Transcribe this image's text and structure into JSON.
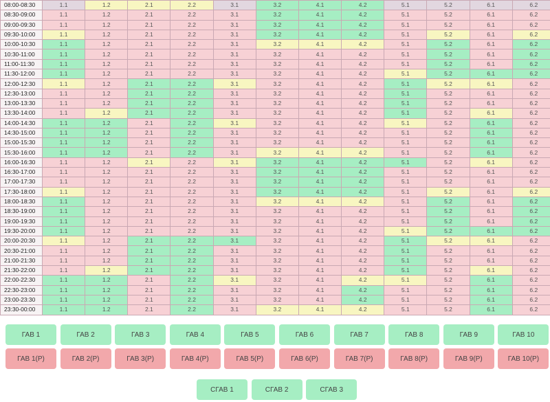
{
  "colors": {
    "green": "#a6eec3",
    "red": "#f7d1d5",
    "yellow": "#f8f6c1",
    "header": "#e2d7e0",
    "button_green": "#a6eec3",
    "button_red": "#f2a8ab"
  },
  "columns": [
    "1.1",
    "1.2",
    "2.1",
    "2.2",
    "3.1",
    "3.2",
    "4.1",
    "4.2",
    "5.1",
    "5.2",
    "6.1",
    "6.2"
  ],
  "rows": [
    {
      "time": "08:00-08:30",
      "states": "pyyypgggpppp"
    },
    {
      "time": "08:30-09:00",
      "states": "rrrrrgggrrrr"
    },
    {
      "time": "09:00-09:30",
      "states": "rrrrrgggrrrr"
    },
    {
      "time": "09:30-10:00",
      "states": "yrrrrgggryry"
    },
    {
      "time": "10:00-10:30",
      "states": "grrrryyyrgrg"
    },
    {
      "time": "10:30-11:00",
      "states": "grrrrrrrrgrg"
    },
    {
      "time": "11:00-11:30",
      "states": "grrrrrrrrgrg"
    },
    {
      "time": "11:30-12:00",
      "states": "grrrrrrryggg"
    },
    {
      "time": "12:00-12:30",
      "states": "yrggyrrrgyyr"
    },
    {
      "time": "12:30-13:00",
      "states": "rrggrrrrgrrr"
    },
    {
      "time": "13:00-13:30",
      "states": "rrggrrrrgrrr"
    },
    {
      "time": "13:30-14:00",
      "states": "ryggrrrrgryr"
    },
    {
      "time": "14:00-14:30",
      "states": "ggrgyrrryrgr"
    },
    {
      "time": "14:30-15:00",
      "states": "ggrgrrrrrrgr"
    },
    {
      "time": "15:00-15:30",
      "states": "ggrgrrrrrrgr"
    },
    {
      "time": "15:30-16:00",
      "states": "ggrgryyyrrgr"
    },
    {
      "time": "16:00-16:30",
      "states": "rryryggggryr"
    },
    {
      "time": "16:30-17:00",
      "states": "rrrrrgggrrrr"
    },
    {
      "time": "17:00-17:30",
      "states": "rrrrrgggrrrr"
    },
    {
      "time": "17:30-18:00",
      "states": "yrrrrgggryry"
    },
    {
      "time": "18:00-18:30",
      "states": "grrrryyyrgrg"
    },
    {
      "time": "18:30-19:00",
      "states": "grrrrrrrrgrg"
    },
    {
      "time": "19:00-19:30",
      "states": "grrrrrrrrgrg"
    },
    {
      "time": "19:30-20:00",
      "states": "grrrrrrryggg"
    },
    {
      "time": "20:00-20:30",
      "states": "yrgggrrrgyyr"
    },
    {
      "time": "20:30-21:00",
      "states": "rrggrrrrgrrr"
    },
    {
      "time": "21:00-21:30",
      "states": "rrggrrrrgrrr"
    },
    {
      "time": "21:30-22:00",
      "states": "ryggrrrrgryr"
    },
    {
      "time": "22:00-22:30",
      "states": "ggrgyrryyrgr"
    },
    {
      "time": "22:30-23:00",
      "states": "ggrgrrrgrrgr"
    },
    {
      "time": "23:00-23:30",
      "states": "ggrgrrrgrrgr"
    },
    {
      "time": "23:30-00:00",
      "states": "ggrgryyyrrgr"
    }
  ],
  "buttons": {
    "gab": [
      "ГАВ 1",
      "ГАВ 2",
      "ГАВ 3",
      "ГАВ 4",
      "ГАВ 5",
      "ГАВ 6",
      "ГАВ 7",
      "ГАВ 8",
      "ГАВ 9",
      "ГАВ 10"
    ],
    "gab_r": [
      "ГАВ 1(Р)",
      "ГАВ 2(Р)",
      "ГАВ 3(Р)",
      "ГАВ 4(Р)",
      "ГАВ 5(Р)",
      "ГАВ 6(Р)",
      "ГАВ 7(Р)",
      "ГАВ 8(Р)",
      "ГАВ 9(Р)",
      "ГАВ 10(Р)"
    ],
    "sgab": [
      "СГАВ 1",
      "СГАВ 2",
      "СГАВ 3"
    ]
  }
}
